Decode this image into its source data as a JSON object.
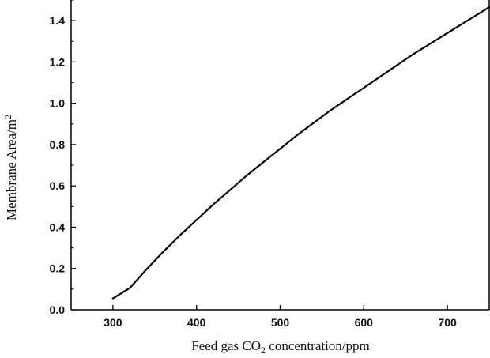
{
  "chart_data": {
    "type": "line",
    "title": "",
    "xlabel": {
      "prefix": "Feed gas CO",
      "subscript": "2",
      "suffix": " concentration/ppm"
    },
    "ylabel": {
      "prefix": "Membrane Area/m",
      "superscript": "2"
    },
    "xlim": [
      250,
      750
    ],
    "ylim": [
      0,
      1.5
    ],
    "x_ticks": [
      300,
      400,
      500,
      600,
      700
    ],
    "y_ticks": [
      0.0,
      0.2,
      0.4,
      0.6,
      0.8,
      1.0,
      1.2,
      1.4
    ],
    "x_tick_labels": [
      "300",
      "400",
      "500",
      "600",
      "700"
    ],
    "y_tick_labels": [
      "0.0",
      "0.2",
      "0.4",
      "0.6",
      "0.8",
      "1.0",
      "1.2",
      "1.4"
    ],
    "grid": false,
    "legend": "none",
    "series": [
      {
        "color": "#000000",
        "x": [
          300,
          320,
          340,
          360,
          380,
          400,
          420,
          440,
          460,
          480,
          500,
          520,
          540,
          560,
          580,
          600,
          620,
          640,
          660,
          680,
          700,
          720,
          740,
          750
        ],
        "y": [
          0.055,
          0.105,
          0.195,
          0.28,
          0.36,
          0.435,
          0.51,
          0.58,
          0.65,
          0.715,
          0.78,
          0.845,
          0.905,
          0.965,
          1.02,
          1.075,
          1.13,
          1.185,
          1.24,
          1.29,
          1.34,
          1.39,
          1.44,
          1.465
        ]
      }
    ]
  }
}
